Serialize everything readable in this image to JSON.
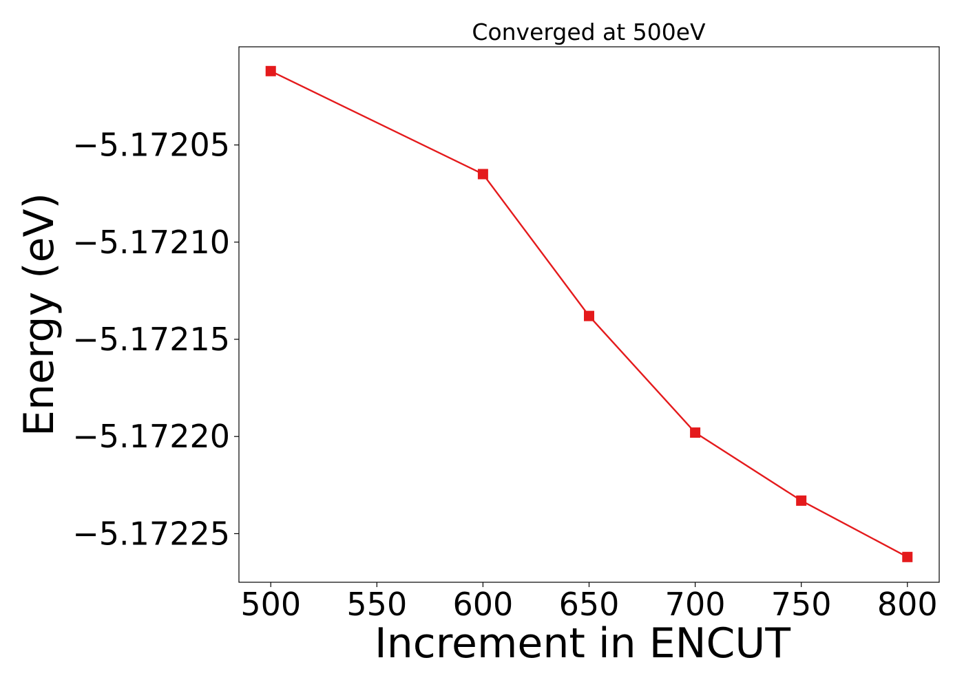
{
  "chart_data": {
    "type": "line",
    "title": "Converged at 500eV",
    "xlabel": "Increment in ENCUT",
    "ylabel": "Energy (eV)",
    "x": [
      500,
      600,
      650,
      700,
      750,
      800
    ],
    "series": [
      {
        "values": [
          -5.172012,
          -5.172065,
          -5.172138,
          -5.172198,
          -5.172233,
          -5.172262
        ],
        "color": "#e41a1c",
        "marker": "square"
      }
    ],
    "xlim": [
      485,
      815
    ],
    "ylim": [
      -5.172275,
      -5.1719995
    ],
    "xticks": [
      500,
      550,
      600,
      650,
      700,
      750,
      800
    ],
    "xtick_labels": [
      "500",
      "550",
      "600",
      "650",
      "700",
      "750",
      "800"
    ],
    "yticks": [
      -5.17205,
      -5.1721,
      -5.17215,
      -5.1722,
      -5.17225
    ],
    "ytick_labels": [
      "−5.17205",
      "−5.17210",
      "−5.17215",
      "−5.17220",
      "−5.17225"
    ],
    "grid": false,
    "legend": "none"
  }
}
